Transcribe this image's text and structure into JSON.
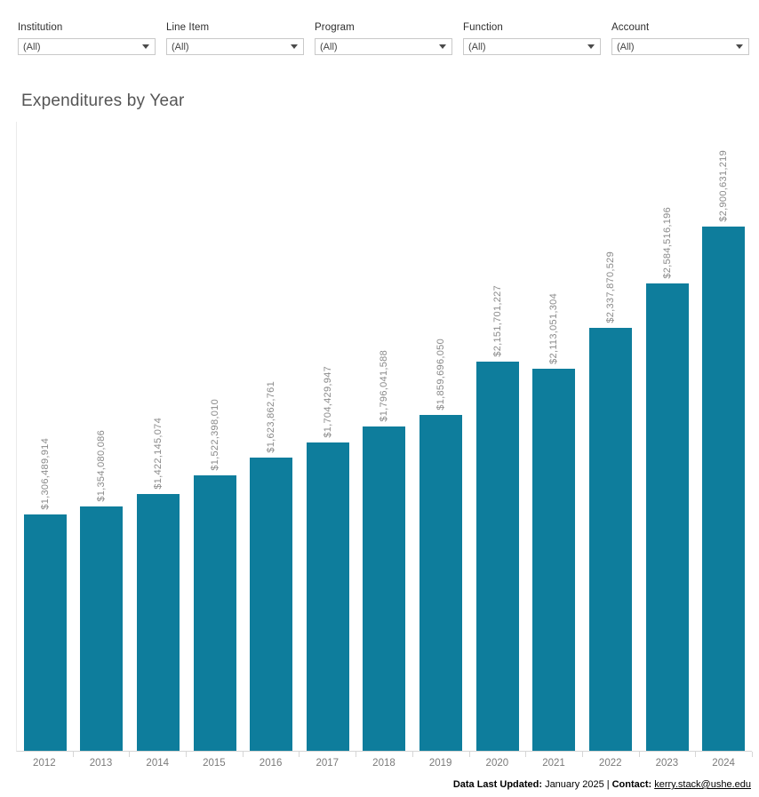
{
  "filters": {
    "items": [
      {
        "label": "Institution",
        "value": "(All)"
      },
      {
        "label": "Line Item",
        "value": "(All)"
      },
      {
        "label": "Program",
        "value": "(All)"
      },
      {
        "label": "Function",
        "value": "(All)"
      },
      {
        "label": "Account",
        "value": "(All)"
      }
    ]
  },
  "chart": {
    "title": "Expenditures by Year"
  },
  "chart_data": {
    "type": "bar",
    "title": "Expenditures by Year",
    "categories": [
      "2012",
      "2013",
      "2014",
      "2015",
      "2016",
      "2017",
      "2018",
      "2019",
      "2020",
      "2021",
      "2022",
      "2023",
      "2024"
    ],
    "values": [
      1306489914,
      1354080086,
      1422145074,
      1522398010,
      1623862761,
      1704429947,
      1796041588,
      1859696050,
      2151701227,
      2113051304,
      2337870529,
      2584516196,
      2900631219
    ],
    "labels": [
      "$1,306,489,914",
      "$1,354,080,086",
      "$1,422,145,074",
      "$1,522,398,010",
      "$1,623,862,761",
      "$1,704,429,947",
      "$1,796,041,588",
      "$1,859,696,050",
      "$2,151,701,227",
      "$2,113,051,304",
      "$2,337,870,529",
      "$2,584,516,196",
      "$2,900,631,219"
    ],
    "xlabel": "",
    "ylabel": "",
    "ylim": [
      0,
      2900631219
    ],
    "grid": false,
    "legend": "none",
    "bar_color": "#0e7d9c",
    "label_color": "#8a8a8a"
  },
  "footer": {
    "updated_label": "Data Last Updated:",
    "updated_value": "January 2025",
    "divider": "|",
    "contact_label": "Contact:",
    "contact_email": "kerry.stack@ushe.edu"
  },
  "colors": {
    "bar": "#0e7d9c",
    "title_text": "#555555",
    "axis_line": "#d6d6d6",
    "value_label": "#8a8a8a",
    "year_label": "#7b7b7b"
  }
}
